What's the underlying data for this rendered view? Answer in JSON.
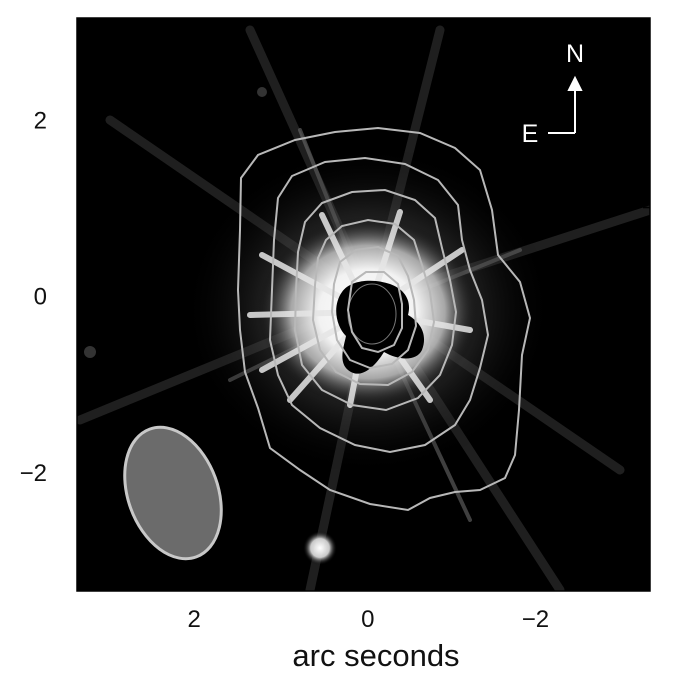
{
  "figure": {
    "x_axis_label": "arc seconds",
    "x_ticks": [
      {
        "value": 2,
        "label": "2"
      },
      {
        "value": 0,
        "label": "0"
      },
      {
        "value": -2,
        "label": "−2"
      }
    ],
    "y_ticks": [
      {
        "value": 2,
        "label": "2"
      },
      {
        "value": 0,
        "label": "0"
      },
      {
        "value": -2,
        "label": "−2"
      }
    ],
    "x_range": [
      3.35,
      -3.25
    ],
    "y_range": [
      -3.35,
      3.15
    ],
    "x_minor_step": 0.5,
    "y_minor_step": 0.5,
    "compass": {
      "north_label": "N",
      "east_label": "E"
    },
    "contour_color": "#b8b8b8",
    "contour_levels": 6,
    "beam": {
      "fill_color": "#6b6b6b",
      "stroke_color": "#c8c8c8"
    },
    "background_color": "#000000"
  }
}
